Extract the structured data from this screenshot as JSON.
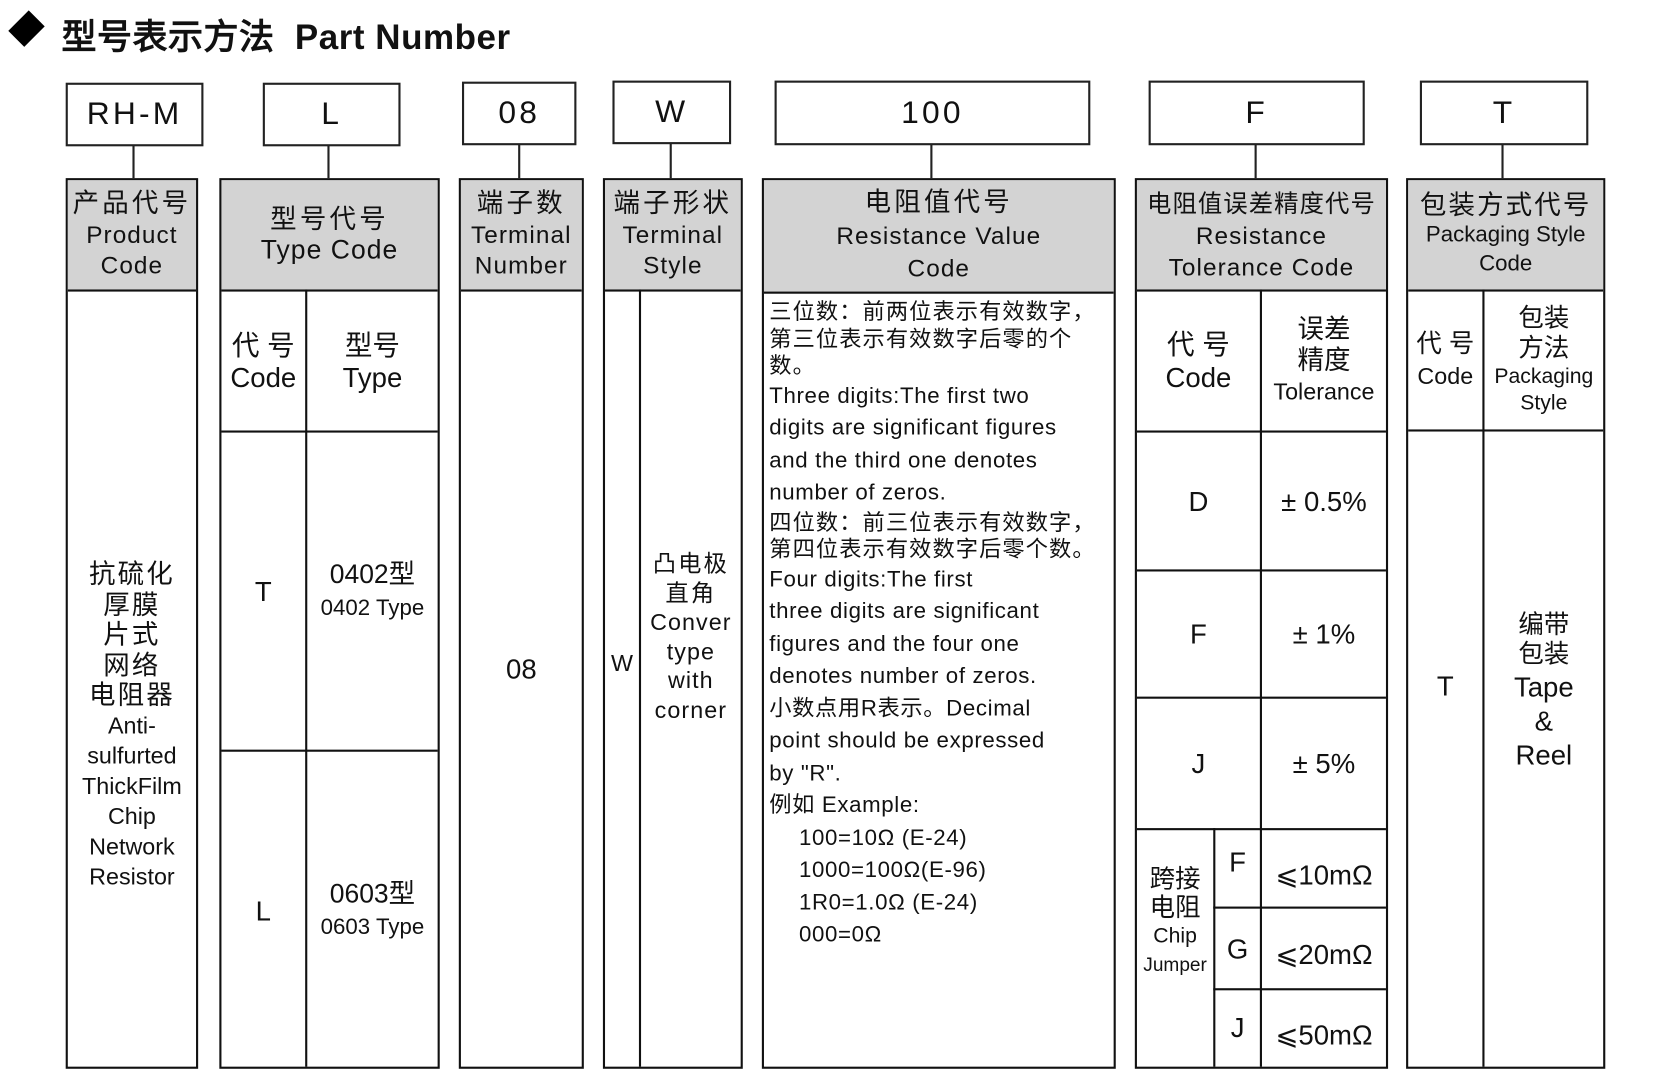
{
  "title": {
    "icon": "diamond-icon",
    "text": "型号表示方法  Part Number"
  },
  "code_boxes": [
    "RH-M",
    "L",
    "08",
    "W",
    "100",
    "F",
    "T"
  ],
  "columns": {
    "product": {
      "header_cn": "产品代号",
      "header_en1": "Product",
      "header_en2": "Code",
      "body": [
        "抗硫化",
        "厚膜",
        "片式",
        "网络",
        "电阻器",
        "Anti-",
        "sulfurted",
        "ThickFilm",
        "Chip",
        "Network",
        "Resistor"
      ]
    },
    "type": {
      "header_cn": "型号代号",
      "header_en": "Type Code",
      "sub_code_cn": "代 号",
      "sub_code_en": "Code",
      "sub_type_cn": "型号",
      "sub_type_en": "Type",
      "rows": [
        {
          "code": "T",
          "type_cn": "0402型",
          "type_en": "0402 Type"
        },
        {
          "code": "L",
          "type_cn": "0603型",
          "type_en": "0603 Type"
        }
      ]
    },
    "terminal_number": {
      "header_cn": "端子数",
      "header_en1": "Terminal",
      "header_en2": "Number",
      "value": "08"
    },
    "terminal_style": {
      "header_cn": "端子形状",
      "header_en1": "Terminal",
      "header_en2": "Style",
      "code": "W",
      "desc": [
        "凸电极",
        "直角",
        "Conver",
        "type",
        "with",
        "corner"
      ]
    },
    "resistance": {
      "header_cn": "电阻值代号",
      "header_en1": "Resistance Value",
      "header_en2": "Code",
      "lines_cn1": [
        "三位数：前两位表示有效数字，",
        "第三位表示有效数字后零的个数。"
      ],
      "lines_en1": [
        "Three digits:The first two",
        "digits are significant  figures",
        "and the third one denotes",
        "number of zeros."
      ],
      "lines_cn2": [
        "四位数：前三位表示有效数字，",
        "第四位表示有效数字后零个数。"
      ],
      "lines_en2": [
        "Four digits:The first",
        "three digits are significant",
        "figures and the four one",
        "denotes number of  zeros."
      ],
      "lines_dec": [
        "小数点用R表示。Decimal",
        "point should be expressed",
        "by \"R\"."
      ],
      "example_label": "例如 Example:",
      "examples": [
        "100=10Ω  (E-24)",
        "1000=100Ω(E-96)",
        "1R0=1.0Ω (E-24)",
        "000=0Ω"
      ]
    },
    "tolerance": {
      "header_cn": "电阻值误差精度代号",
      "header_en1": "Resistance",
      "header_en2": "Tolerance Code",
      "sub_code_cn": "代 号",
      "sub_code_en": "Code",
      "sub_tol_cn1": "误差",
      "sub_tol_cn2": "精度",
      "sub_tol_en": "Tolerance",
      "rows": [
        {
          "code": "D",
          "value": "± 0.5%"
        },
        {
          "code": "F",
          "value": "± 1%"
        },
        {
          "code": "J",
          "value": "± 5%"
        }
      ],
      "jumper_cn1": "跨接",
      "jumper_cn2": "电阻",
      "jumper_en1": "Chip",
      "jumper_en2": "Jumper",
      "jumper_rows": [
        {
          "code": "F",
          "value": "⩽10mΩ"
        },
        {
          "code": "G",
          "value": "⩽20mΩ"
        },
        {
          "code": "J",
          "value": "⩽50mΩ"
        }
      ]
    },
    "packaging": {
      "header_cn": "包装方式代号",
      "header_en1": "Packaging Style",
      "header_en2": "Code",
      "sub_code_cn": "代 号",
      "sub_code_en": "Code",
      "sub_pkg_cn1": "包装",
      "sub_pkg_cn2": "方法",
      "sub_pkg_en1": "Packaging",
      "sub_pkg_en2": "Style",
      "code": "T",
      "desc": [
        "编带",
        "包装",
        "Tape",
        "&",
        "Reel"
      ]
    }
  }
}
